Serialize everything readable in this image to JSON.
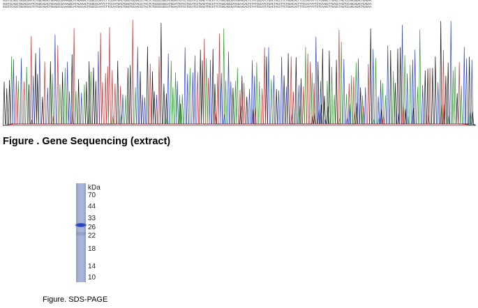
{
  "sequencing": {
    "read_text": "GCGTCCAGCTGGACGAATCTGGCAGACTGGAGCCGAAAGGCATAGAAACTCGGCCCAATCTTCCAATGACTGGGTGCAACCCTACTCTGCGCCGGCATGGAATGTCCTGCATCCTGAGTTGCGTTCTGGCAGCGATGGAACACTCTATCGCATCTGACTACCTTCTGGACACTTTCCAATATTCTCAAGCTTGACCTAGTCCAGCAGACTGAGAA",
    "trace_colors": {
      "A": "#2e9e2e",
      "C": "#2b3fd6",
      "G": "#111111",
      "T": "#d13030"
    },
    "title": "Figure . Gene Sequencing (extract)"
  },
  "sds_page": {
    "unit_label": "kDa",
    "markers": [
      "70",
      "44",
      "33",
      "26",
      "22",
      "18",
      "14",
      "10"
    ],
    "band_color": "#2041c0",
    "lane_color": "#a3aed5",
    "caption": "Figure. SDS-PAGE"
  }
}
